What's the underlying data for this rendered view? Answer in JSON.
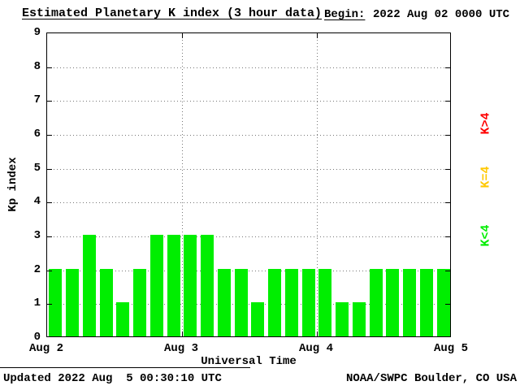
{
  "header": {
    "title": "Estimated Planetary K index (3 hour data)",
    "begin_label": "Begin:",
    "begin_value": "2022 Aug 02 0000 UTC"
  },
  "chart_data": {
    "type": "bar",
    "title": "Estimated Planetary K index (3 hour data)",
    "xlabel": "Universal Time",
    "ylabel": "Kp index",
    "ylim": [
      0,
      9
    ],
    "y_ticks": [
      0,
      1,
      2,
      3,
      4,
      5,
      6,
      7,
      8,
      9
    ],
    "x_ticks": [
      "Aug 2",
      "Aug 3",
      "Aug 4",
      "Aug 5"
    ],
    "begin": "2022 Aug 02 0000 UTC",
    "bar_interval_hours": 3,
    "values": [
      2,
      2,
      3,
      2,
      1,
      2,
      3,
      3,
      3,
      3,
      2,
      2,
      1,
      2,
      2,
      2,
      2,
      1,
      1,
      2,
      2,
      2,
      2,
      2
    ],
    "colors": {
      "k_below_4": "#00ee00",
      "k_equal_4": "#ffc800",
      "k_above_4": "#ff0000"
    },
    "grid": "dotted horizontal lines at each Kp integer, dotted vertical lines at day boundaries",
    "legend_position": "right, rotated"
  },
  "legend": {
    "items": [
      {
        "label": "K>4",
        "color": "#ff0000"
      },
      {
        "label": "K=4",
        "color": "#ffc800"
      },
      {
        "label": "K<4",
        "color": "#00ee00"
      }
    ]
  },
  "footer": {
    "updated": "Updated 2022 Aug  5 00:30:10 UTC",
    "source": "NOAA/SWPC Boulder, CO USA"
  }
}
